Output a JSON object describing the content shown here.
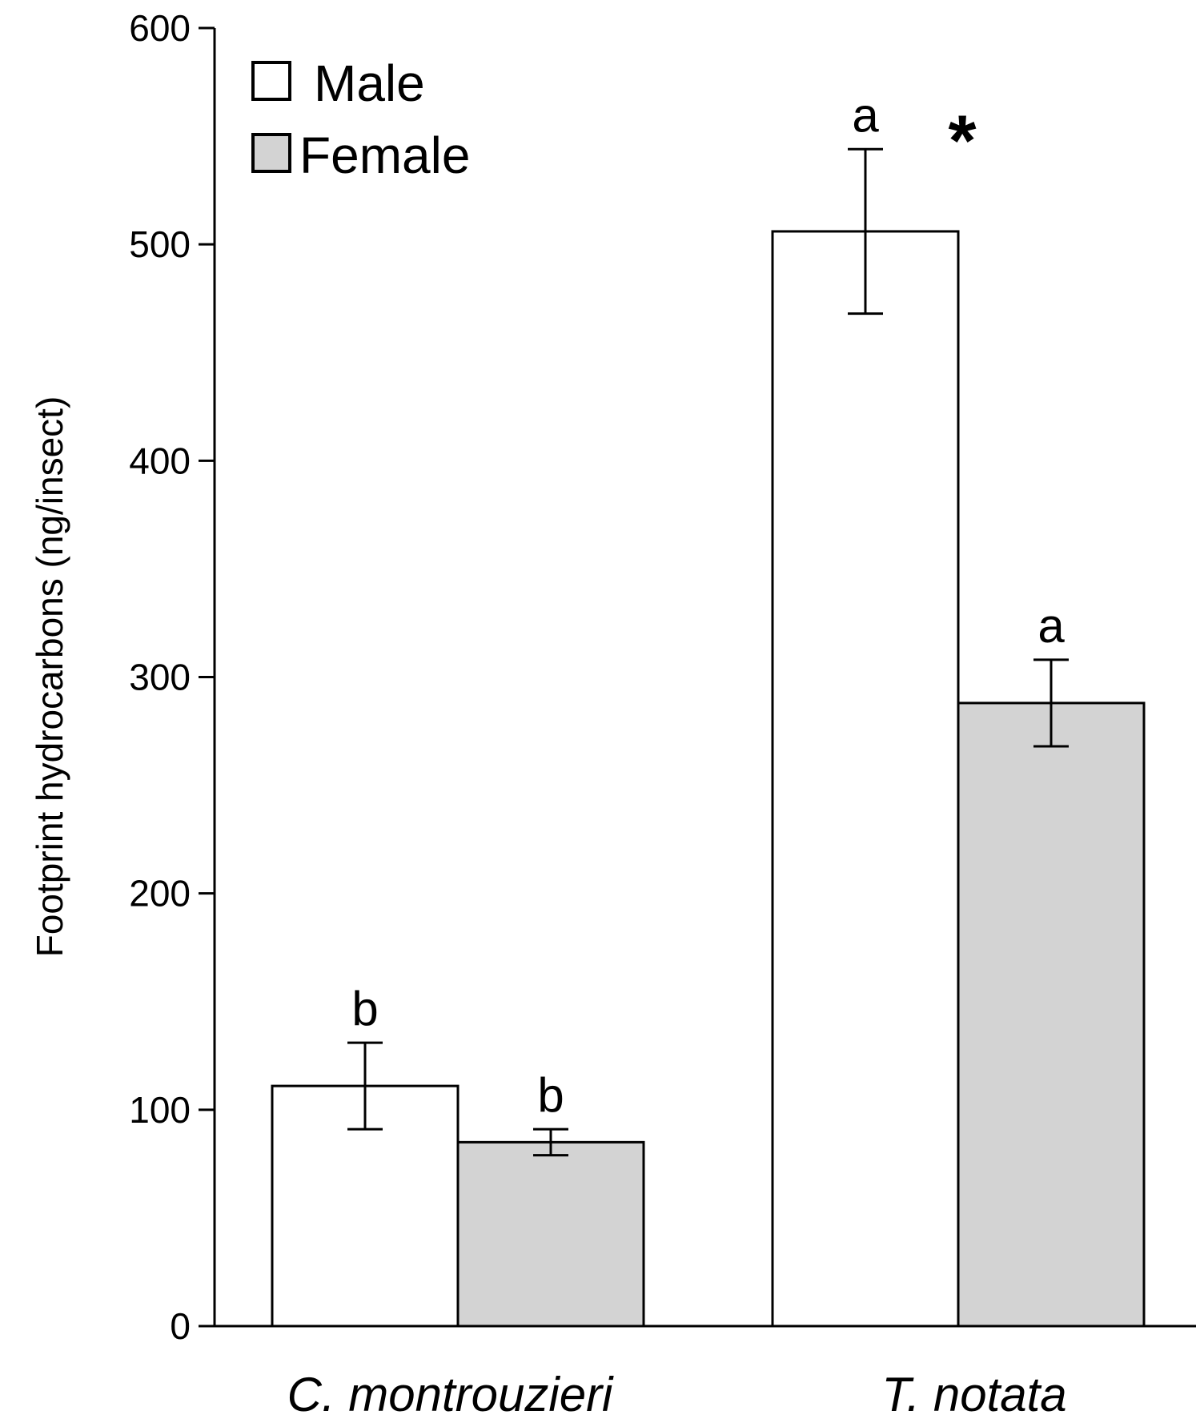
{
  "chart_data": {
    "type": "bar",
    "title": "",
    "xlabel": "",
    "ylabel": "Footprint hydrocarbons (ng/insect)",
    "ylim": [
      0,
      600
    ],
    "yticks": [
      0,
      100,
      200,
      300,
      400,
      500,
      600
    ],
    "grid": false,
    "legend_position": "top-left",
    "categories": [
      "C. montrouzieri",
      "T. notata"
    ],
    "series": [
      {
        "name": "Male",
        "color": "#ffffff",
        "values": [
          111,
          506
        ],
        "errors": [
          20,
          38
        ],
        "letters": [
          "b",
          "a"
        ]
      },
      {
        "name": "Female",
        "color": "#d3d3d3",
        "values": [
          85,
          288
        ],
        "errors": [
          6,
          20
        ],
        "letters": [
          "b",
          "a"
        ]
      }
    ],
    "annotations": [
      {
        "category_index": 1,
        "text": "*"
      }
    ]
  }
}
